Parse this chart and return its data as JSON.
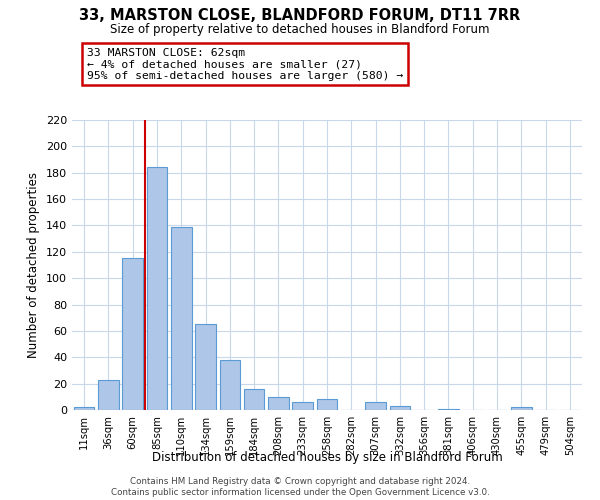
{
  "title": "33, MARSTON CLOSE, BLANDFORD FORUM, DT11 7RR",
  "subtitle": "Size of property relative to detached houses in Blandford Forum",
  "xlabel": "Distribution of detached houses by size in Blandford Forum",
  "ylabel": "Number of detached properties",
  "bin_labels": [
    "11sqm",
    "36sqm",
    "60sqm",
    "85sqm",
    "110sqm",
    "134sqm",
    "159sqm",
    "184sqm",
    "208sqm",
    "233sqm",
    "258sqm",
    "282sqm",
    "307sqm",
    "332sqm",
    "356sqm",
    "381sqm",
    "406sqm",
    "430sqm",
    "455sqm",
    "479sqm",
    "504sqm"
  ],
  "bar_heights": [
    2,
    23,
    115,
    184,
    139,
    65,
    38,
    16,
    10,
    6,
    8,
    0,
    6,
    3,
    0,
    1,
    0,
    0,
    2,
    0,
    0
  ],
  "bar_color": "#aec6e8",
  "bar_edge_color": "#5b9bd5",
  "vline_color": "#cc0000",
  "ylim": [
    0,
    220
  ],
  "yticks": [
    0,
    20,
    40,
    60,
    80,
    100,
    120,
    140,
    160,
    180,
    200,
    220
  ],
  "annotation_title": "33 MARSTON CLOSE: 62sqm",
  "annotation_line1": "← 4% of detached houses are smaller (27)",
  "annotation_line2": "95% of semi-detached houses are larger (580) →",
  "annotation_box_color": "#ffffff",
  "annotation_box_edge": "#cc0000",
  "footnote1": "Contains HM Land Registry data © Crown copyright and database right 2024.",
  "footnote2": "Contains public sector information licensed under the Open Government Licence v3.0.",
  "background_color": "#ffffff",
  "grid_color": "#c8d8e8"
}
